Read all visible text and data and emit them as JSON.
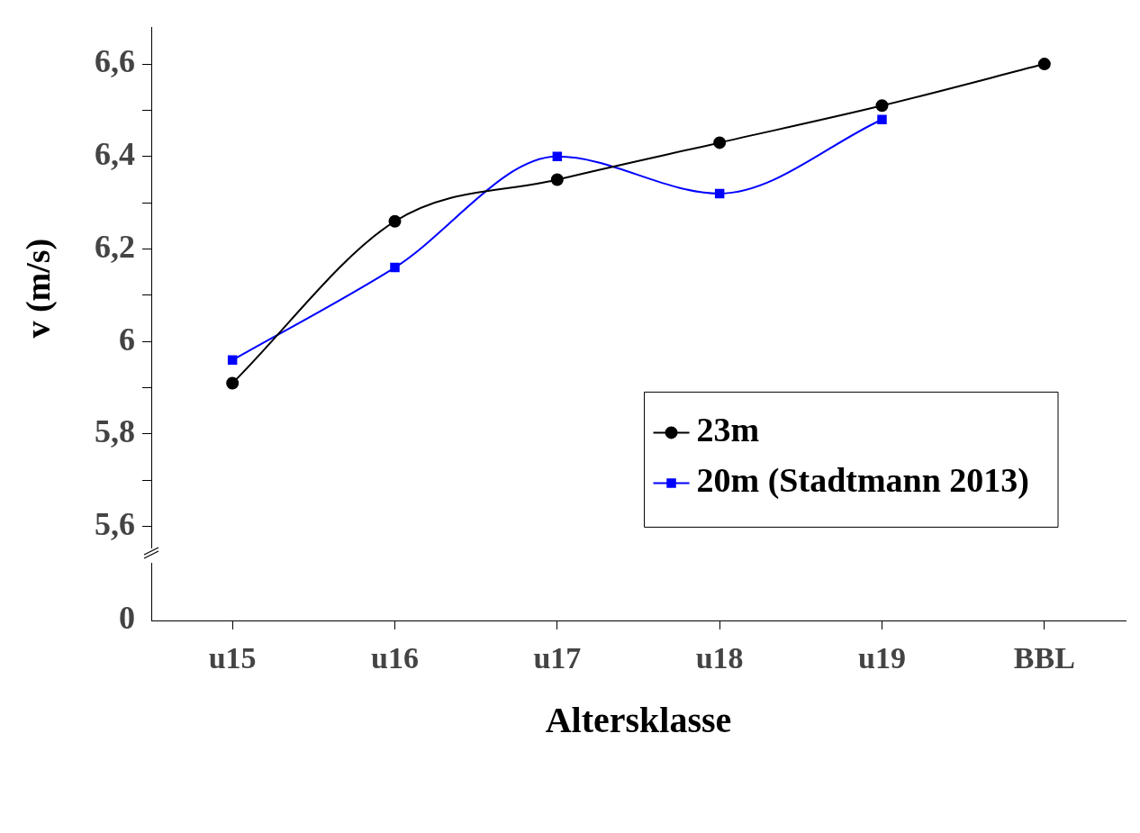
{
  "chart_data": [
    {
      "type": "line",
      "ylabel": "v (m/s)",
      "categories": [
        null,
        null,
        null,
        null,
        null,
        null
      ],
      "series": [
        {
          "name": "23m",
          "color": "#000000",
          "marker": "circle",
          "values": [
            5.91,
            6.26,
            6.35,
            6.43,
            6.51,
            6.6
          ]
        },
        {
          "name": "20m (Stadtmann 2013)",
          "color": "#0000ff",
          "marker": "square",
          "values": [
            5.96,
            6.16,
            6.4,
            6.32,
            6.48,
            null
          ]
        }
      ],
      "ylim": [
        5.55,
        6.68
      ],
      "yticks": [
        {
          "value": 5.6,
          "label": "5,6"
        },
        {
          "value": 5.7,
          "label": null
        },
        {
          "value": 5.8,
          "label": "5,8"
        },
        {
          "value": 5.9,
          "label": null
        },
        {
          "value": 6,
          "label": "6"
        },
        {
          "value": 6.1,
          "label": null
        },
        {
          "value": 6.2,
          "label": "6,2"
        },
        {
          "value": 6.3,
          "label": null
        },
        {
          "value": 6.4,
          "label": "6,4"
        },
        {
          "value": 6.5,
          "label": null
        },
        {
          "value": 6.6,
          "label": "6,6"
        }
      ],
      "tick_labels": "y",
      "grid": false,
      "legend": "bottom right",
      "line_style": "solid"
    },
    {
      "type": "other",
      "xlabel": "Altersklasse",
      "categories": [
        "u15",
        "u16",
        "u17",
        "u18",
        "u19",
        "BBL"
      ],
      "annotations": [
        "0"
      ]
    }
  ]
}
